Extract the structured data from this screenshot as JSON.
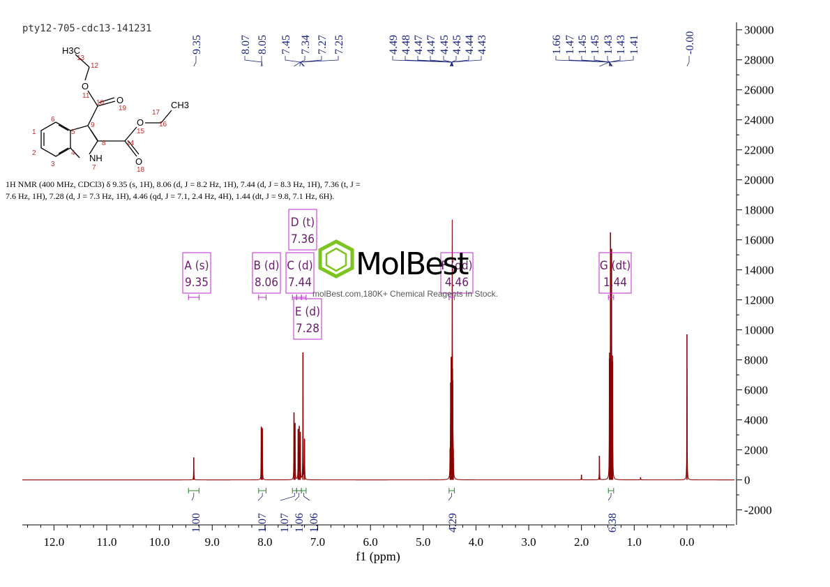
{
  "sample_id": "pty12-705-cdc13-141231",
  "description_lines": [
    "1H NMR (400 MHz, CDCl3) δ 9.35 (s, 1H), 8.06 (d, J = 8.2 Hz, 1H), 7.44 (d, J = 8.3 Hz, 1H), 7.36 (t, J =",
    "7.6 Hz, 1H), 7.28 (d, J = 7.3 Hz, 1H), 4.46 (qd, J = 7.1, 2.4 Hz, 4H), 1.44 (dt, J = 9.8, 7.1 Hz, 6H)."
  ],
  "watermark": {
    "brand": "MolBest",
    "tagline": "molBest.com,180K+ Chemical Reagents In Stock."
  },
  "colors": {
    "spectrum": "#8b0000",
    "peak_labels": "#1a237e",
    "integrals": "#2e7d32",
    "multiplet_box": "#c026d3",
    "multiplet_text": "#6a1b6a",
    "structure_numbers": "#c62828",
    "watermark_logo": "#7cc41f"
  },
  "structure": {
    "atoms": [
      "H3C",
      "O",
      "O",
      "O",
      "O",
      "NH",
      "CH3"
    ],
    "numbers": [
      "13",
      "12",
      "11",
      "10",
      "19",
      "6",
      "9",
      "8",
      "14",
      "15",
      "16",
      "17",
      "1",
      "5",
      "2",
      "4",
      "3",
      "7",
      "18"
    ]
  },
  "chart_data": {
    "type": "line",
    "xlabel": "f1 (ppm)",
    "ylabel": "",
    "xlim": [
      12.6,
      -0.9
    ],
    "ylim": [
      -3000,
      30500
    ],
    "x_ticks": [
      12.0,
      11.0,
      10.0,
      9.0,
      8.0,
      7.0,
      6.0,
      5.0,
      4.0,
      3.0,
      2.0,
      1.0,
      0.0
    ],
    "x_tick_labels": [
      "12.0",
      "11.0",
      "10.0",
      "9.0",
      "8.0",
      "7.0",
      "6.0",
      "5.0",
      "4.0",
      "3.0",
      "2.0",
      "1.0",
      "0.0"
    ],
    "y_ticks": [
      -2000,
      0,
      2000,
      4000,
      6000,
      8000,
      10000,
      12000,
      14000,
      16000,
      18000,
      20000,
      22000,
      24000,
      26000,
      28000,
      30000
    ],
    "y_tick_labels": [
      "-2000",
      "0",
      "2000",
      "4000",
      "6000",
      "8000",
      "10000",
      "12000",
      "14000",
      "16000",
      "18000",
      "20000",
      "22000",
      "24000",
      "26000",
      "28000",
      "30000"
    ],
    "y_axis_side": "right",
    "grid": false,
    "peaks": [
      {
        "ppm": 9.35,
        "height": 1500
      },
      {
        "ppm": 8.07,
        "height": 3550
      },
      {
        "ppm": 8.05,
        "height": 3450
      },
      {
        "ppm": 7.45,
        "height": 4500
      },
      {
        "ppm": 7.43,
        "height": 3800
      },
      {
        "ppm": 7.37,
        "height": 3400
      },
      {
        "ppm": 7.35,
        "height": 3600
      },
      {
        "ppm": 7.33,
        "height": 3200
      },
      {
        "ppm": 7.28,
        "height": 8500
      },
      {
        "ppm": 7.25,
        "height": 2700
      },
      {
        "ppm": 4.49,
        "height": 2100
      },
      {
        "ppm": 4.48,
        "height": 6500
      },
      {
        "ppm": 4.47,
        "height": 8200
      },
      {
        "ppm": 4.45,
        "height": 8600
      },
      {
        "ppm": 4.45,
        "height": 8400
      },
      {
        "ppm": 4.44,
        "height": 6600
      },
      {
        "ppm": 4.43,
        "height": 2100
      },
      {
        "ppm": 1.66,
        "height": 1600
      },
      {
        "ppm": 1.47,
        "height": 8100
      },
      {
        "ppm": 1.45,
        "height": 16500
      },
      {
        "ppm": 1.43,
        "height": 15400
      },
      {
        "ppm": 1.41,
        "height": 7900
      },
      {
        "ppm": 2.0,
        "height": 350
      },
      {
        "ppm": 0.88,
        "height": 180
      },
      {
        "ppm": 0.0,
        "height": 9700
      }
    ],
    "peak_labels": [
      {
        "ppm": 9.35,
        "text": "9.35"
      },
      {
        "ppm": 8.07,
        "text": "8.07"
      },
      {
        "ppm": 8.05,
        "text": "8.05"
      },
      {
        "ppm": 7.45,
        "text": "7.45"
      },
      {
        "ppm": 7.34,
        "text": "7.34"
      },
      {
        "ppm": 7.27,
        "text": "7.27"
      },
      {
        "ppm": 7.25,
        "text": "7.25"
      },
      {
        "ppm": 4.49,
        "text": "4.49"
      },
      {
        "ppm": 4.48,
        "text": "4.48"
      },
      {
        "ppm": 4.47,
        "text": "4.47"
      },
      {
        "ppm": 4.47,
        "text": "4.47"
      },
      {
        "ppm": 4.45,
        "text": "4.45"
      },
      {
        "ppm": 4.45,
        "text": "4.45"
      },
      {
        "ppm": 4.44,
        "text": "4.44"
      },
      {
        "ppm": 4.43,
        "text": "4.43"
      },
      {
        "ppm": 1.66,
        "text": "1.66"
      },
      {
        "ppm": 1.47,
        "text": "1.47"
      },
      {
        "ppm": 1.45,
        "text": "1.45"
      },
      {
        "ppm": 1.45,
        "text": "1.45"
      },
      {
        "ppm": 1.43,
        "text": "1.43"
      },
      {
        "ppm": 1.43,
        "text": "1.43"
      },
      {
        "ppm": 1.41,
        "text": "1.41"
      },
      {
        "ppm": 0.0,
        "text": "-0.00"
      }
    ],
    "integrals": [
      {
        "from": 9.45,
        "to": 9.25,
        "value": "1.00"
      },
      {
        "from": 8.12,
        "to": 7.98,
        "value": "1.07"
      },
      {
        "from": 7.48,
        "to": 7.4,
        "value": "1.07"
      },
      {
        "from": 7.4,
        "to": 7.31,
        "value": "1.06"
      },
      {
        "from": 7.31,
        "to": 7.22,
        "value": "1.06"
      },
      {
        "from": 4.51,
        "to": 4.41,
        "value": "4.29"
      },
      {
        "from": 1.49,
        "to": 1.39,
        "value": "6.38"
      }
    ],
    "multiplets": [
      {
        "label": "A (s)",
        "shift": "9.35",
        "ppm": 9.35,
        "range_from": 9.45,
        "range_to": 9.25,
        "box_ppm": 9.35,
        "row": "mid"
      },
      {
        "label": "B (d)",
        "shift": "8.06",
        "ppm": 8.06,
        "range_from": 8.12,
        "range_to": 7.98,
        "box_ppm": 8.06,
        "row": "mid"
      },
      {
        "label": "C (d)",
        "shift": "7.44",
        "ppm": 7.44,
        "range_from": 7.48,
        "range_to": 7.4,
        "box_ppm": 7.44,
        "row": "mid"
      },
      {
        "label": "D (t)",
        "shift": "7.36",
        "ppm": 7.36,
        "range_from": 7.4,
        "range_to": 7.31,
        "box_ppm": 7.36,
        "row": "top"
      },
      {
        "label": "E (d)",
        "shift": "7.28",
        "ppm": 7.28,
        "range_from": 7.31,
        "range_to": 7.22,
        "box_ppm": 7.28,
        "row": "low"
      },
      {
        "label": "F (qd)",
        "shift": "4.46",
        "ppm": 4.46,
        "range_from": 4.51,
        "range_to": 4.41,
        "box_ppm": 4.46,
        "row": "mid"
      },
      {
        "label": "G (dt)",
        "shift": "1.44",
        "ppm": 1.44,
        "range_from": 1.49,
        "range_to": 1.39,
        "box_ppm": 1.44,
        "row": "mid"
      }
    ]
  }
}
